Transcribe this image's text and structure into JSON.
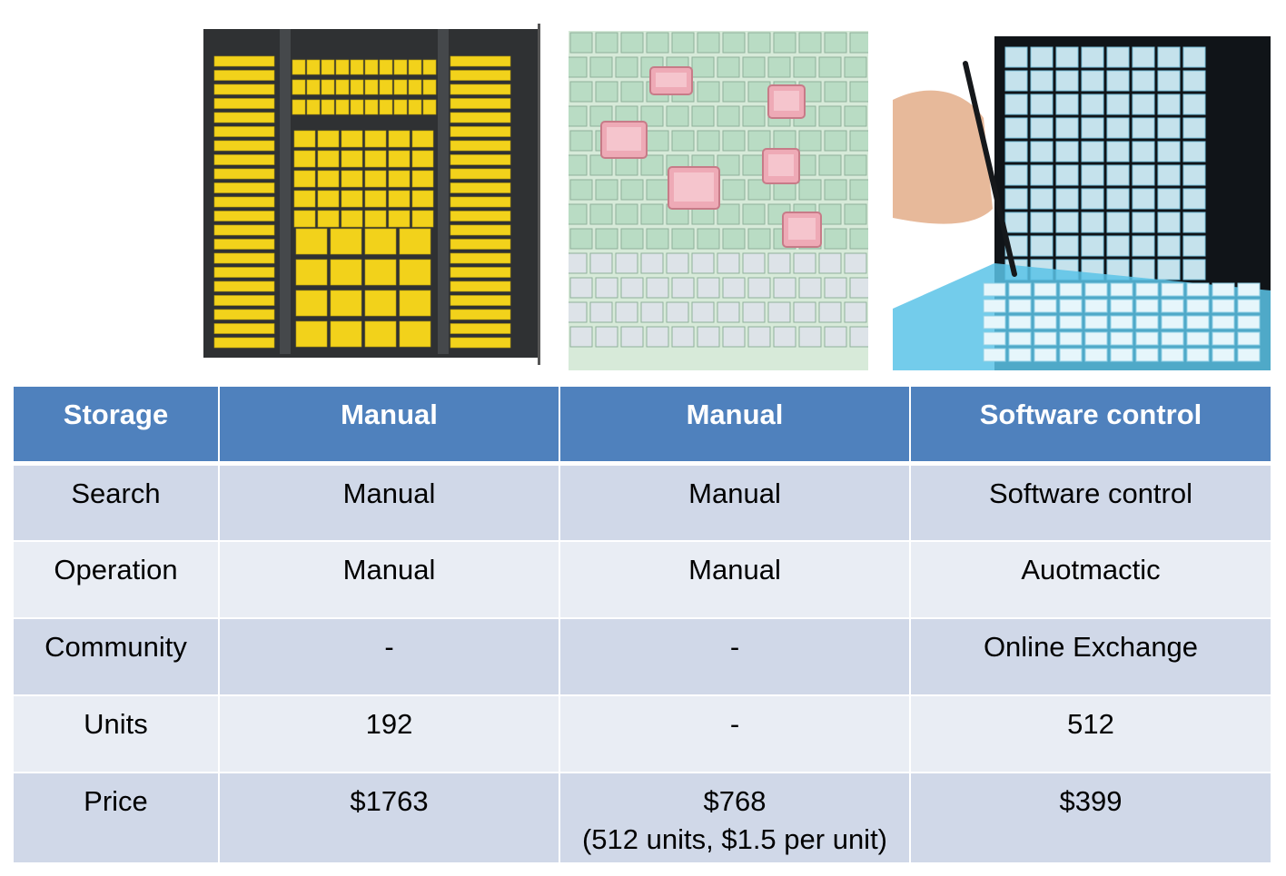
{
  "images": [
    {
      "name": "storage-cabinet-photo"
    },
    {
      "name": "smd-component-boxes-photo"
    },
    {
      "name": "automated-storage-tower-photo"
    }
  ],
  "table": {
    "header": [
      "Storage",
      "Manual",
      "Manual",
      "Software control"
    ],
    "rows": [
      {
        "cells": [
          "Search",
          "Manual",
          "Manual",
          "Software control"
        ]
      },
      {
        "cells": [
          "Operation",
          "Manual",
          "Manual",
          "Auotmactic"
        ]
      },
      {
        "cells": [
          "Community",
          "-",
          "-",
          "Online Exchange"
        ]
      },
      {
        "cells": [
          "Units",
          "192",
          "-",
          "512"
        ]
      },
      {
        "cells": [
          "Price",
          "$1763",
          "$768",
          "$399"
        ],
        "note": "(512 units, $1.5 per unit)"
      }
    ]
  },
  "colors": {
    "header_bg": "#4f81bd",
    "row_dark": "#d0d8e8",
    "row_light": "#e9edf4",
    "bin_yellow": "#f2d21b",
    "smd_green": "#b9dcc4",
    "smd_pink": "#eeaab6",
    "tower_blue": "#5bc3e8"
  }
}
